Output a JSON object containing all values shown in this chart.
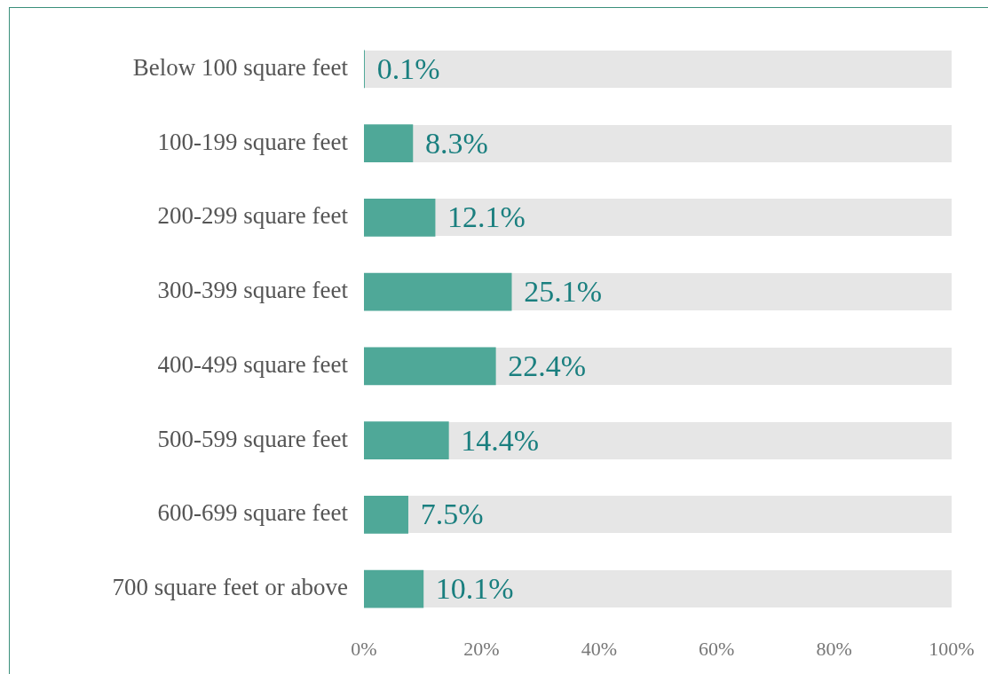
{
  "chart_data": {
    "type": "bar",
    "orientation": "horizontal",
    "categories": [
      "Below 100 square feet",
      "100-199 square feet",
      "200-299 square feet",
      "300-399 square feet",
      "400-499 square feet",
      "500-599 square feet",
      "600-699 square feet",
      "700 square feet or above"
    ],
    "series": [
      {
        "color": "#4fa898",
        "values": [
          0.1,
          8.3,
          12.1,
          25.1,
          22.4,
          14.4,
          7.5,
          10.1
        ],
        "value_labels": [
          "0.1%",
          "8.3%",
          "12.1%",
          "25.1%",
          "22.4%",
          "14.4%",
          "7.5%",
          "10.1%"
        ]
      }
    ],
    "xlim": [
      0,
      100
    ],
    "xticks": [
      {
        "value": 0,
        "label": "0%"
      },
      {
        "value": 20,
        "label": "20%"
      },
      {
        "value": 40,
        "label": "40%"
      },
      {
        "value": 60,
        "label": "60%"
      },
      {
        "value": 80,
        "label": "80%"
      },
      {
        "value": 100,
        "label": "100%"
      }
    ],
    "grid": false,
    "legend": false
  }
}
